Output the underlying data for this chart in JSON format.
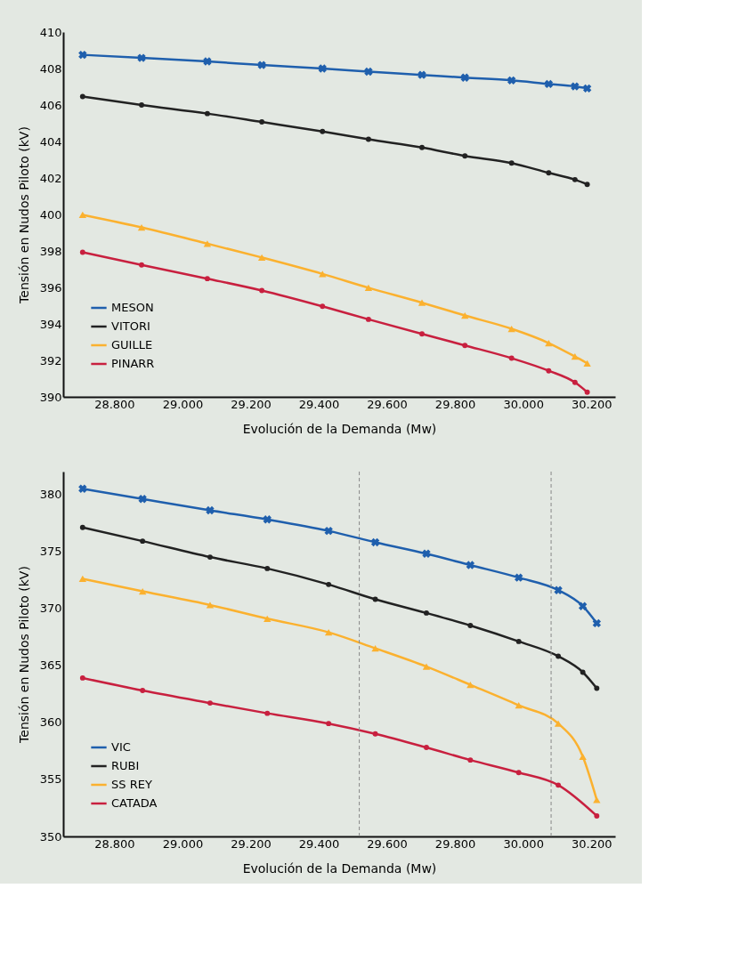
{
  "chart_data": [
    {
      "type": "line",
      "xlabel": "Evolución de la Demanda (Mw)",
      "ylabel": "Tensión en Nudos Piloto (kV)",
      "x": [
        28707,
        28880,
        29073,
        29233,
        29411,
        29546,
        29703,
        29829,
        29966,
        30075,
        30152,
        30188
      ],
      "xlim": [
        28650,
        30270
      ],
      "xticks": [
        {
          "value": 28800,
          "label": "28.800"
        },
        {
          "value": 29000,
          "label": "29.000"
        },
        {
          "value": 29200,
          "label": "29.200"
        },
        {
          "value": 29400,
          "label": "29.400"
        },
        {
          "value": 29600,
          "label": "29.600"
        },
        {
          "value": 29800,
          "label": "29.800"
        },
        {
          "value": 30000,
          "label": "30.000"
        },
        {
          "value": 30200,
          "label": "30.200"
        }
      ],
      "ylim": [
        390,
        410
      ],
      "yticks": [
        390,
        392,
        394,
        396,
        398,
        400,
        402,
        404,
        406,
        408,
        410
      ],
      "grid": false,
      "legend": "bottom left",
      "series": [
        {
          "name": "MESON",
          "color": "#1f5fad",
          "marker": "cross",
          "values": [
            408.75,
            408.58,
            408.39,
            408.19,
            408.0,
            407.83,
            407.65,
            407.5,
            407.35,
            407.15,
            407.02,
            406.91
          ]
        },
        {
          "name": "VITORI",
          "color": "#222222",
          "marker": "circle",
          "values": [
            406.46,
            406.0,
            405.53,
            405.07,
            404.55,
            404.12,
            403.67,
            403.21,
            402.82,
            402.28,
            401.91,
            401.65
          ]
        },
        {
          "name": "GUILLE",
          "color": "#fbb12f",
          "marker": "triangle",
          "values": [
            399.98,
            399.29,
            398.4,
            397.64,
            396.74,
            395.98,
            395.16,
            394.46,
            393.73,
            392.95,
            392.21,
            391.84
          ]
        },
        {
          "name": "PINARR",
          "color": "#c8203f",
          "marker": "circle",
          "values": [
            397.93,
            397.23,
            396.48,
            395.83,
            394.96,
            394.25,
            393.45,
            392.82,
            392.12,
            391.43,
            390.79,
            390.26
          ]
        }
      ]
    },
    {
      "type": "line",
      "xlabel": "Evolución de la Demanda (Mw)",
      "ylabel": "Tensión en Nudos Piloto (kV)",
      "x": [
        28707,
        28883,
        29081,
        29249,
        29429,
        29566,
        29716,
        29845,
        29987,
        30103,
        30175,
        30216
      ],
      "xlim": [
        28650,
        30270
      ],
      "xticks": [
        {
          "value": 28800,
          "label": "28.800"
        },
        {
          "value": 29000,
          "label": "29.000"
        },
        {
          "value": 29200,
          "label": "29.200"
        },
        {
          "value": 29400,
          "label": "29.400"
        },
        {
          "value": 29600,
          "label": "29.600"
        },
        {
          "value": 29800,
          "label": "29.800"
        },
        {
          "value": 30000,
          "label": "30.000"
        },
        {
          "value": 30200,
          "label": "30.200"
        }
      ],
      "ylim": [
        350,
        382
      ],
      "yticks": [
        350,
        355,
        360,
        365,
        370,
        375,
        380
      ],
      "grid": false,
      "legend": "bottom left",
      "ref_lines": [
        {
          "axis": "x",
          "value": 29519,
          "color": "#888888",
          "line_style": "dashed"
        },
        {
          "axis": "x",
          "value": 30082,
          "color": "#888888",
          "line_style": "dashed"
        }
      ],
      "series": [
        {
          "name": "VIC",
          "color": "#1f5fad",
          "marker": "cross",
          "values": [
            380.5,
            379.6,
            378.6,
            377.8,
            376.8,
            375.8,
            374.8,
            373.8,
            372.7,
            371.6,
            370.2,
            368.7
          ]
        },
        {
          "name": "RUBI",
          "color": "#222222",
          "marker": "circle",
          "values": [
            377.1,
            375.9,
            374.5,
            373.5,
            372.1,
            370.8,
            369.6,
            368.5,
            367.1,
            365.8,
            364.4,
            363.0
          ]
        },
        {
          "name": "SS REY",
          "color": "#fbb12f",
          "marker": "triangle",
          "values": [
            372.6,
            371.5,
            370.3,
            369.1,
            367.9,
            366.5,
            364.9,
            363.3,
            361.5,
            359.9,
            357.0,
            353.2
          ]
        },
        {
          "name": "CATADA",
          "color": "#c8203f",
          "marker": "circle",
          "x": [
            28707,
            28883,
            29081,
            29249,
            29429,
            29566,
            29716,
            29845,
            29987,
            30103,
            30216
          ],
          "values": [
            363.9,
            362.8,
            361.7,
            360.8,
            359.9,
            359.0,
            357.8,
            356.7,
            355.6,
            354.5,
            351.8
          ]
        }
      ]
    }
  ]
}
